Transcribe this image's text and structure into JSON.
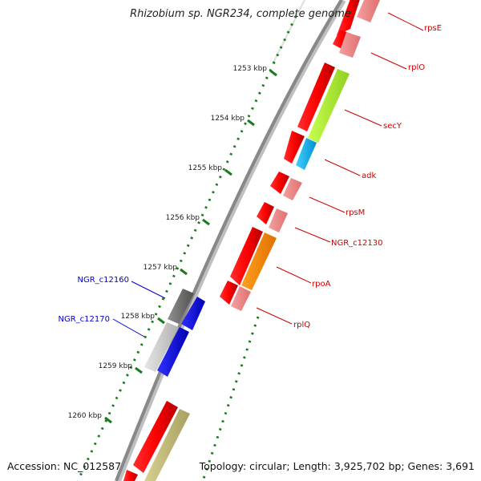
{
  "title": "Rhizobium sp. NGR234, complete genome",
  "footer": {
    "accession": "Accession: NC_012587",
    "summary": "Topology: circular; Length: 3,925,702 bp; Genes: 3,691"
  },
  "colors": {
    "backbone": "#888888",
    "tick": "#1e7a1e",
    "label_red": "#cc0000",
    "label_blue": "#0000cc"
  },
  "ticks": [
    {
      "label": "1253 kbp"
    },
    {
      "label": "1254 kbp"
    },
    {
      "label": "1255 kbp"
    },
    {
      "label": "1256 kbp"
    },
    {
      "label": "1257 kbp"
    },
    {
      "label": "1258 kbp"
    },
    {
      "label": "1259 kbp"
    },
    {
      "label": "1260 kbp"
    }
  ],
  "gene_labels": [
    {
      "name": "rpsE",
      "color": "#cc0000"
    },
    {
      "name": "rplO",
      "color": "#cc0000"
    },
    {
      "name": "secY",
      "color": "#cc0000"
    },
    {
      "name": "adk",
      "color": "#cc0000"
    },
    {
      "name": "rpsM",
      "color": "#cc0000"
    },
    {
      "name": "NGR_c12130",
      "color": "#cc0000"
    },
    {
      "name": "rpoA",
      "color": "#cc0000"
    },
    {
      "name": "rplQ",
      "color": "#cc0000"
    },
    {
      "name": "NGR_c12160",
      "color": "#0000cc"
    },
    {
      "name": "NGR_c12170",
      "color": "#0000cc"
    }
  ]
}
